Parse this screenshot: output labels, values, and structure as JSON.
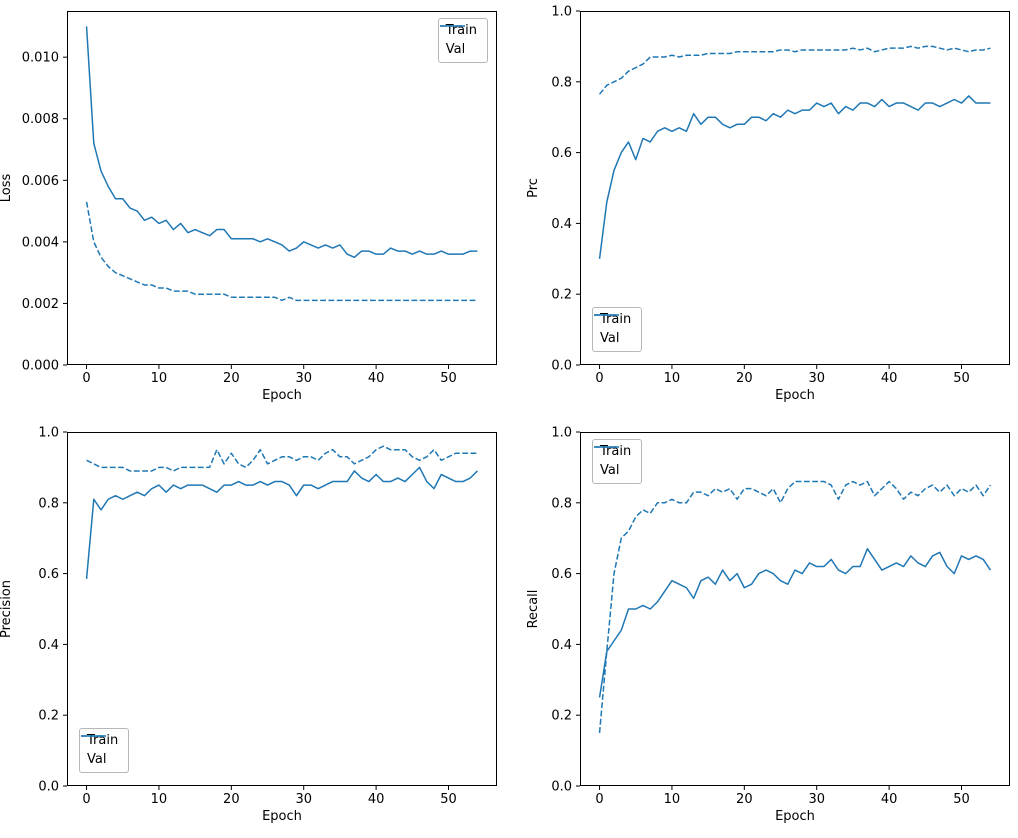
{
  "figure": {
    "background": "#ffffff",
    "accent": "#1f77b4",
    "spine_color": "#000000"
  },
  "legend_labels": {
    "train": "Train",
    "val": "Val"
  },
  "chart_data": [
    {
      "type": "line",
      "title": "",
      "xlabel": "Epoch",
      "ylabel": "Loss",
      "xlim": [
        -2.7,
        56.7
      ],
      "ylim": [
        0.0,
        0.0115
      ],
      "xticks": [
        0,
        10,
        20,
        30,
        40,
        50
      ],
      "xtick_labels": [
        "0",
        "10",
        "20",
        "30",
        "40",
        "50"
      ],
      "yticks": [
        0.0,
        0.002,
        0.004,
        0.006,
        0.008,
        0.01
      ],
      "ytick_labels": [
        "0.000",
        "0.002",
        "0.004",
        "0.006",
        "0.008",
        "0.010"
      ],
      "grid": false,
      "legend": {
        "position": "upper right",
        "entries": [
          "Train",
          "Val"
        ]
      },
      "series": [
        {
          "name": "Train",
          "style": "solid",
          "values": [
            0.011,
            0.0072,
            0.0063,
            0.0058,
            0.0054,
            0.0054,
            0.0051,
            0.005,
            0.0047,
            0.0048,
            0.0046,
            0.0047,
            0.0044,
            0.0046,
            0.0043,
            0.0044,
            0.0043,
            0.0042,
            0.0044,
            0.0044,
            0.0041,
            0.0041,
            0.0041,
            0.0041,
            0.004,
            0.0041,
            0.004,
            0.0039,
            0.0037,
            0.0038,
            0.004,
            0.0039,
            0.0038,
            0.0039,
            0.0038,
            0.0039,
            0.0036,
            0.0035,
            0.0037,
            0.0037,
            0.0036,
            0.0036,
            0.0038,
            0.0037,
            0.0037,
            0.0036,
            0.0037,
            0.0036,
            0.0036,
            0.0037,
            0.0036,
            0.0036,
            0.0036,
            0.0037,
            0.0037
          ]
        },
        {
          "name": "Val",
          "style": "dashed",
          "values": [
            0.0053,
            0.004,
            0.0035,
            0.0032,
            0.003,
            0.0029,
            0.0028,
            0.0027,
            0.0026,
            0.0026,
            0.0025,
            0.0025,
            0.0024,
            0.0024,
            0.0024,
            0.0023,
            0.0023,
            0.0023,
            0.0023,
            0.0023,
            0.0022,
            0.0022,
            0.0022,
            0.0022,
            0.0022,
            0.0022,
            0.0022,
            0.0021,
            0.0022,
            0.0021,
            0.0021,
            0.0021,
            0.0021,
            0.0021,
            0.0021,
            0.0021,
            0.0021,
            0.0021,
            0.0021,
            0.0021,
            0.0021,
            0.0021,
            0.0021,
            0.0021,
            0.0021,
            0.0021,
            0.0021,
            0.0021,
            0.0021,
            0.0021,
            0.0021,
            0.0021,
            0.0021,
            0.0021,
            0.0021
          ]
        }
      ]
    },
    {
      "type": "line",
      "title": "",
      "xlabel": "Epoch",
      "ylabel": "Prc",
      "xlim": [
        -2.7,
        56.7
      ],
      "ylim": [
        0.0,
        1.0
      ],
      "xticks": [
        0,
        10,
        20,
        30,
        40,
        50
      ],
      "xtick_labels": [
        "0",
        "10",
        "20",
        "30",
        "40",
        "50"
      ],
      "yticks": [
        0.0,
        0.2,
        0.4,
        0.6,
        0.8,
        1.0
      ],
      "ytick_labels": [
        "0.0",
        "0.2",
        "0.4",
        "0.6",
        "0.8",
        "1.0"
      ],
      "grid": false,
      "legend": {
        "position": "lower left",
        "entries": [
          "Train",
          "Val"
        ]
      },
      "series": [
        {
          "name": "Train",
          "style": "solid",
          "values": [
            0.3,
            0.46,
            0.55,
            0.6,
            0.63,
            0.58,
            0.64,
            0.63,
            0.66,
            0.67,
            0.66,
            0.67,
            0.66,
            0.71,
            0.68,
            0.7,
            0.7,
            0.68,
            0.67,
            0.68,
            0.68,
            0.7,
            0.7,
            0.69,
            0.71,
            0.7,
            0.72,
            0.71,
            0.72,
            0.72,
            0.74,
            0.73,
            0.74,
            0.71,
            0.73,
            0.72,
            0.74,
            0.74,
            0.73,
            0.75,
            0.73,
            0.74,
            0.74,
            0.73,
            0.72,
            0.74,
            0.74,
            0.73,
            0.74,
            0.75,
            0.74,
            0.76,
            0.74,
            0.74,
            0.74
          ]
        },
        {
          "name": "Val",
          "style": "dashed",
          "values": [
            0.765,
            0.79,
            0.8,
            0.81,
            0.83,
            0.84,
            0.85,
            0.87,
            0.87,
            0.87,
            0.875,
            0.87,
            0.875,
            0.875,
            0.875,
            0.88,
            0.88,
            0.88,
            0.88,
            0.885,
            0.885,
            0.885,
            0.885,
            0.885,
            0.885,
            0.89,
            0.89,
            0.885,
            0.89,
            0.89,
            0.89,
            0.89,
            0.89,
            0.89,
            0.89,
            0.895,
            0.89,
            0.895,
            0.885,
            0.89,
            0.895,
            0.895,
            0.895,
            0.9,
            0.895,
            0.9,
            0.9,
            0.895,
            0.89,
            0.895,
            0.89,
            0.885,
            0.89,
            0.89,
            0.895
          ]
        }
      ]
    },
    {
      "type": "line",
      "title": "",
      "xlabel": "Epoch",
      "ylabel": "Precision",
      "xlim": [
        -2.7,
        56.7
      ],
      "ylim": [
        0.0,
        1.0
      ],
      "xticks": [
        0,
        10,
        20,
        30,
        40,
        50
      ],
      "xtick_labels": [
        "0",
        "10",
        "20",
        "30",
        "40",
        "50"
      ],
      "yticks": [
        0.0,
        0.2,
        0.4,
        0.6,
        0.8,
        1.0
      ],
      "ytick_labels": [
        "0.0",
        "0.2",
        "0.4",
        "0.6",
        "0.8",
        "1.0"
      ],
      "grid": false,
      "legend": {
        "position": "lower left",
        "entries": [
          "Train",
          "Val"
        ]
      },
      "series": [
        {
          "name": "Train",
          "style": "solid",
          "values": [
            0.585,
            0.81,
            0.78,
            0.81,
            0.82,
            0.81,
            0.82,
            0.83,
            0.82,
            0.84,
            0.85,
            0.83,
            0.85,
            0.84,
            0.85,
            0.85,
            0.85,
            0.84,
            0.83,
            0.85,
            0.85,
            0.86,
            0.85,
            0.85,
            0.86,
            0.85,
            0.86,
            0.86,
            0.85,
            0.82,
            0.85,
            0.85,
            0.84,
            0.85,
            0.86,
            0.86,
            0.86,
            0.89,
            0.87,
            0.86,
            0.88,
            0.86,
            0.86,
            0.87,
            0.86,
            0.88,
            0.9,
            0.86,
            0.84,
            0.88,
            0.87,
            0.86,
            0.86,
            0.87,
            0.89
          ]
        },
        {
          "name": "Val",
          "style": "dashed",
          "values": [
            0.92,
            0.91,
            0.9,
            0.9,
            0.9,
            0.9,
            0.89,
            0.89,
            0.89,
            0.89,
            0.9,
            0.9,
            0.89,
            0.9,
            0.9,
            0.9,
            0.9,
            0.9,
            0.95,
            0.91,
            0.94,
            0.91,
            0.9,
            0.92,
            0.95,
            0.91,
            0.92,
            0.93,
            0.93,
            0.92,
            0.93,
            0.93,
            0.92,
            0.94,
            0.95,
            0.93,
            0.93,
            0.91,
            0.92,
            0.93,
            0.95,
            0.96,
            0.95,
            0.95,
            0.95,
            0.93,
            0.92,
            0.93,
            0.95,
            0.92,
            0.93,
            0.94,
            0.94,
            0.94,
            0.94
          ]
        }
      ]
    },
    {
      "type": "line",
      "title": "",
      "xlabel": "Epoch",
      "ylabel": "Recall",
      "xlim": [
        -2.7,
        56.7
      ],
      "ylim": [
        0.0,
        1.0
      ],
      "xticks": [
        0,
        10,
        20,
        30,
        40,
        50
      ],
      "xtick_labels": [
        "0",
        "10",
        "20",
        "30",
        "40",
        "50"
      ],
      "yticks": [
        0.0,
        0.2,
        0.4,
        0.6,
        0.8,
        1.0
      ],
      "ytick_labels": [
        "0.0",
        "0.2",
        "0.4",
        "0.6",
        "0.8",
        "1.0"
      ],
      "grid": false,
      "legend": {
        "position": "upper left",
        "entries": [
          "Train",
          "Val"
        ]
      },
      "series": [
        {
          "name": "Train",
          "style": "solid",
          "values": [
            0.25,
            0.38,
            0.41,
            0.44,
            0.5,
            0.5,
            0.51,
            0.5,
            0.52,
            0.55,
            0.58,
            0.57,
            0.56,
            0.53,
            0.58,
            0.59,
            0.57,
            0.61,
            0.58,
            0.6,
            0.56,
            0.57,
            0.6,
            0.61,
            0.6,
            0.58,
            0.57,
            0.61,
            0.6,
            0.63,
            0.62,
            0.62,
            0.64,
            0.61,
            0.6,
            0.62,
            0.62,
            0.67,
            0.64,
            0.61,
            0.62,
            0.63,
            0.62,
            0.65,
            0.63,
            0.62,
            0.65,
            0.66,
            0.62,
            0.6,
            0.65,
            0.64,
            0.65,
            0.64,
            0.61
          ]
        },
        {
          "name": "Val",
          "style": "dashed",
          "values": [
            0.15,
            0.38,
            0.6,
            0.7,
            0.72,
            0.76,
            0.78,
            0.77,
            0.8,
            0.8,
            0.81,
            0.8,
            0.8,
            0.83,
            0.83,
            0.82,
            0.84,
            0.83,
            0.84,
            0.81,
            0.84,
            0.84,
            0.83,
            0.82,
            0.84,
            0.8,
            0.84,
            0.86,
            0.86,
            0.86,
            0.86,
            0.86,
            0.85,
            0.81,
            0.85,
            0.86,
            0.85,
            0.86,
            0.82,
            0.84,
            0.86,
            0.84,
            0.81,
            0.83,
            0.82,
            0.84,
            0.85,
            0.83,
            0.85,
            0.82,
            0.84,
            0.83,
            0.85,
            0.82,
            0.85
          ]
        }
      ]
    }
  ]
}
